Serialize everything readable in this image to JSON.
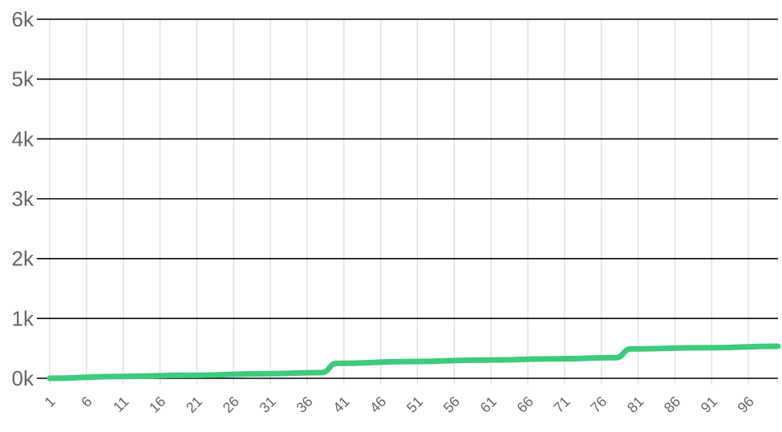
{
  "chart_data": {
    "type": "line",
    "title": "",
    "xlabel": "",
    "ylabel": "",
    "x_range": [
      1,
      100
    ],
    "xticks": [
      "1",
      "6",
      "11",
      "16",
      "21",
      "26",
      "31",
      "36",
      "41",
      "46",
      "51",
      "56",
      "61",
      "66",
      "71",
      "76",
      "81",
      "86",
      "91",
      "96"
    ],
    "yticks": [
      "0k",
      "1k",
      "2k",
      "3k",
      "4k",
      "5k",
      "6k"
    ],
    "ylim": [
      0,
      6000
    ],
    "grid": true,
    "legend": "none",
    "series": [
      {
        "color": "#3ecb7b",
        "points": [
          [
            1,
            0
          ],
          [
            10,
            30
          ],
          [
            20,
            50
          ],
          [
            30,
            75
          ],
          [
            38,
            95
          ],
          [
            40,
            250
          ],
          [
            50,
            280
          ],
          [
            60,
            305
          ],
          [
            70,
            325
          ],
          [
            78,
            345
          ],
          [
            80,
            490
          ],
          [
            90,
            510
          ],
          [
            100,
            535
          ]
        ]
      }
    ]
  },
  "colors": {
    "line": "#3ecb7b",
    "major_grid": "#000000",
    "minor_grid": "#dddddd",
    "tick_text": "#666666"
  }
}
